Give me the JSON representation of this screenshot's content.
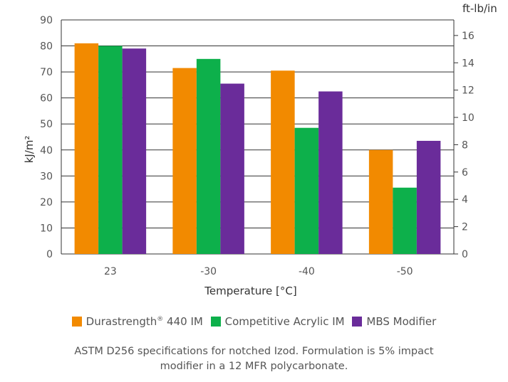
{
  "chart_data": {
    "type": "bar",
    "categories": [
      "23",
      "-30",
      "-40",
      "-50"
    ],
    "series": [
      {
        "name": "Durastrength® 440 IM",
        "color": "#F28A00",
        "values": [
          81,
          71.5,
          70.5,
          40
        ]
      },
      {
        "name": "Competitive Acrylic IM",
        "color": "#0DB04B",
        "values": [
          80,
          75,
          48.5,
          25.5
        ]
      },
      {
        "name": "MBS Modifier",
        "color": "#6A2C9A",
        "values": [
          79,
          65.5,
          62.5,
          43.5
        ]
      }
    ],
    "xlabel": "Temperature [°C]",
    "ylabel": "kJ/m²",
    "ylim": [
      0,
      90
    ],
    "yticks": [
      "0",
      "10",
      "20",
      "30",
      "40",
      "50",
      "60",
      "70",
      "80",
      "90"
    ],
    "y2label": "ft-lb/in",
    "y2lim": [
      0,
      17.14
    ],
    "y2ticks": [
      {
        "value": 0,
        "label": "0"
      },
      {
        "value": 2,
        "label": "2"
      },
      {
        "value": 4,
        "label": "4"
      },
      {
        "value": 6,
        "label": "6"
      },
      {
        "value": 8,
        "label": "8"
      },
      {
        "value": 10,
        "label": "10"
      },
      {
        "value": 12,
        "label": "12"
      },
      {
        "value": 14,
        "label": "14"
      },
      {
        "value": 16,
        "label": "16"
      }
    ],
    "grid": true
  },
  "legend": {
    "items": [
      {
        "label_main": "Durastrength",
        "label_reg": "®",
        "label_rest": " 440 IM"
      },
      {
        "label": "Competitive Acrylic IM"
      },
      {
        "label": "MBS Modifier"
      }
    ]
  },
  "note": {
    "line1": "ASTM D256 specifications for notched Izod.  Formulation is 5% impact",
    "line2": "modifier in a 12 MFR polycarbonate."
  }
}
